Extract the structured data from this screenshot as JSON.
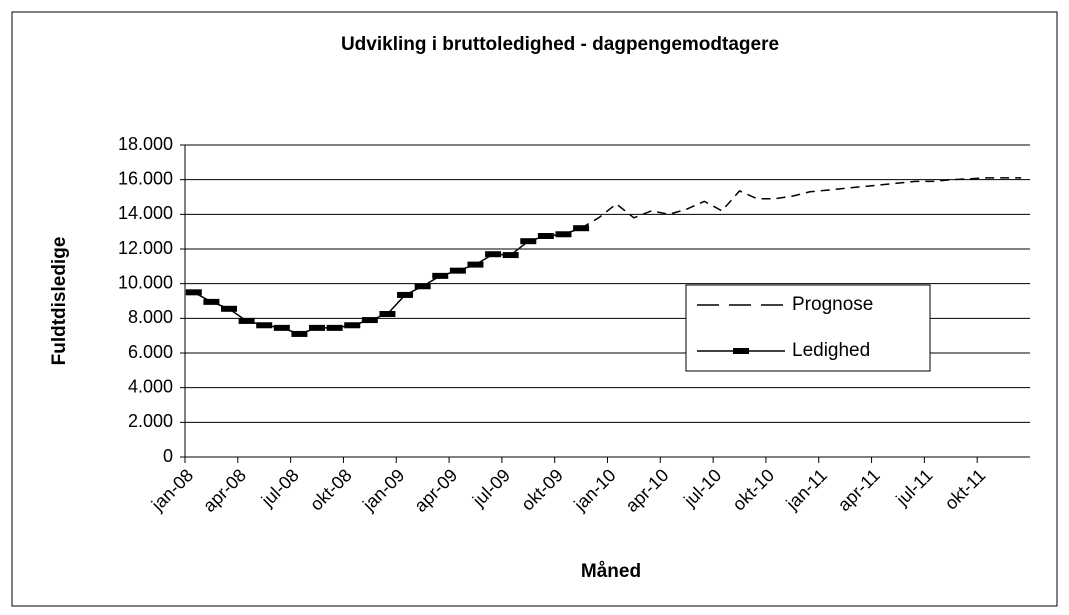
{
  "chart_data": {
    "type": "line",
    "title": "Udvikling i bruttoledighed - dagpengemodtagere",
    "x_label": "Måned",
    "y_label": "Fuldtdisledige",
    "categories": [
      "jan-08",
      null,
      null,
      "apr-08",
      null,
      null,
      "jul-08",
      null,
      null,
      "okt-08",
      null,
      null,
      "jan-09",
      null,
      null,
      "apr-09",
      null,
      null,
      "jul-09",
      null,
      null,
      "okt-09",
      null,
      null,
      "jan-10",
      null,
      null,
      "apr-10",
      null,
      null,
      "jul-10",
      null,
      null,
      "okt-10",
      null,
      null,
      "jan-11",
      null,
      null,
      "apr-11",
      null,
      null,
      "jul-11",
      null,
      null,
      "okt-11",
      null,
      null
    ],
    "series": [
      {
        "name": "Prognose",
        "color": "#000000",
        "dashed": true,
        "values": [
          null,
          null,
          null,
          null,
          null,
          null,
          null,
          null,
          null,
          null,
          null,
          null,
          null,
          null,
          null,
          null,
          null,
          null,
          null,
          null,
          null,
          null,
          13200,
          13800,
          14600,
          13800,
          14200,
          14000,
          14300,
          14750,
          14200,
          15350,
          14900,
          14900,
          15050,
          15300,
          15400,
          15500,
          15600,
          15700,
          15800,
          15900,
          15900,
          16000,
          16050,
          16100,
          16100,
          16100
        ]
      },
      {
        "name": "Ledighed",
        "color": "#000000",
        "dashed": false,
        "marker": true,
        "values": [
          9500,
          8950,
          8550,
          7850,
          7600,
          7450,
          7100,
          7450,
          7450,
          7600,
          7900,
          8250,
          9350,
          9850,
          10450,
          10750,
          11100,
          11700,
          11650,
          12450,
          12750,
          12850,
          13200,
          null,
          null,
          null,
          null,
          null,
          null,
          null,
          null,
          null,
          null,
          null,
          null,
          null,
          null,
          null,
          null,
          null,
          null,
          null,
          null,
          null,
          null,
          null,
          null,
          null
        ]
      }
    ],
    "ylim": [
      0,
      18000
    ],
    "yticks": [
      0,
      {
        "value": 2000,
        "label": "2.000"
      },
      {
        "value": 4000,
        "label": "4.000"
      },
      {
        "value": 6000,
        "label": "6.000"
      },
      {
        "value": 8000,
        "label": "8.000"
      },
      {
        "value": 10000,
        "label": "10.000"
      },
      {
        "value": 12000,
        "label": "12.000"
      },
      {
        "value": 14000,
        "label": "14.000"
      },
      {
        "value": 16000,
        "label": "16.000"
      },
      {
        "value": 18000,
        "label": "18.000"
      }
    ],
    "grid": true
  }
}
